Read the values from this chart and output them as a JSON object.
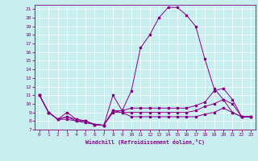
{
  "xlabel": "Windchill (Refroidissement éolien,°C)",
  "xlim": [
    -0.5,
    23.5
  ],
  "ylim": [
    7,
    21.5
  ],
  "yticks": [
    7,
    8,
    9,
    10,
    11,
    12,
    13,
    14,
    15,
    16,
    17,
    18,
    19,
    20,
    21
  ],
  "xticks": [
    0,
    1,
    2,
    3,
    4,
    5,
    6,
    7,
    8,
    9,
    10,
    11,
    12,
    13,
    14,
    15,
    16,
    17,
    18,
    19,
    20,
    21,
    22,
    23
  ],
  "bg_color": "#c8eef0",
  "line_color": "#880088",
  "grid_color": "#ffffff",
  "spine_color": "#880088",
  "lines": [
    {
      "x": [
        0,
        1,
        2,
        3,
        4,
        5,
        6,
        7,
        8,
        9,
        10,
        11,
        12,
        13,
        14,
        15,
        16,
        17,
        18,
        19,
        20,
        21,
        22,
        23
      ],
      "y": [
        11.0,
        9.0,
        8.2,
        9.0,
        8.2,
        8.0,
        7.6,
        7.5,
        11.0,
        9.2,
        11.5,
        16.5,
        18.0,
        20.0,
        21.2,
        21.2,
        20.3,
        19.0,
        15.2,
        11.8,
        10.5,
        9.0,
        8.5,
        8.5
      ]
    },
    {
      "x": [
        0,
        1,
        2,
        3,
        4,
        5,
        6,
        7,
        8,
        9,
        10,
        11,
        12,
        13,
        14,
        15,
        16,
        17,
        18,
        19,
        20,
        21,
        22,
        23
      ],
      "y": [
        11.0,
        9.0,
        8.2,
        8.5,
        8.2,
        8.0,
        7.6,
        7.5,
        9.2,
        9.2,
        9.5,
        9.5,
        9.5,
        9.5,
        9.5,
        9.5,
        9.5,
        9.8,
        10.2,
        11.5,
        11.8,
        10.5,
        8.5,
        8.5
      ]
    },
    {
      "x": [
        0,
        1,
        2,
        3,
        4,
        5,
        6,
        7,
        8,
        9,
        10,
        11,
        12,
        13,
        14,
        15,
        16,
        17,
        18,
        19,
        20,
        21,
        22,
        23
      ],
      "y": [
        11.0,
        9.0,
        8.2,
        8.5,
        8.0,
        8.0,
        7.6,
        7.5,
        9.2,
        9.0,
        9.0,
        9.0,
        9.0,
        9.0,
        9.0,
        9.0,
        9.0,
        9.2,
        9.7,
        10.0,
        10.5,
        10.0,
        8.5,
        8.5
      ]
    },
    {
      "x": [
        0,
        1,
        2,
        3,
        4,
        5,
        6,
        7,
        8,
        9,
        10,
        11,
        12,
        13,
        14,
        15,
        16,
        17,
        18,
        19,
        20,
        21,
        22,
        23
      ],
      "y": [
        11.0,
        9.0,
        8.2,
        8.2,
        8.0,
        7.8,
        7.6,
        7.5,
        9.0,
        9.0,
        8.5,
        8.5,
        8.5,
        8.5,
        8.5,
        8.5,
        8.5,
        8.5,
        8.8,
        9.0,
        9.5,
        9.0,
        8.5,
        8.5
      ]
    }
  ]
}
